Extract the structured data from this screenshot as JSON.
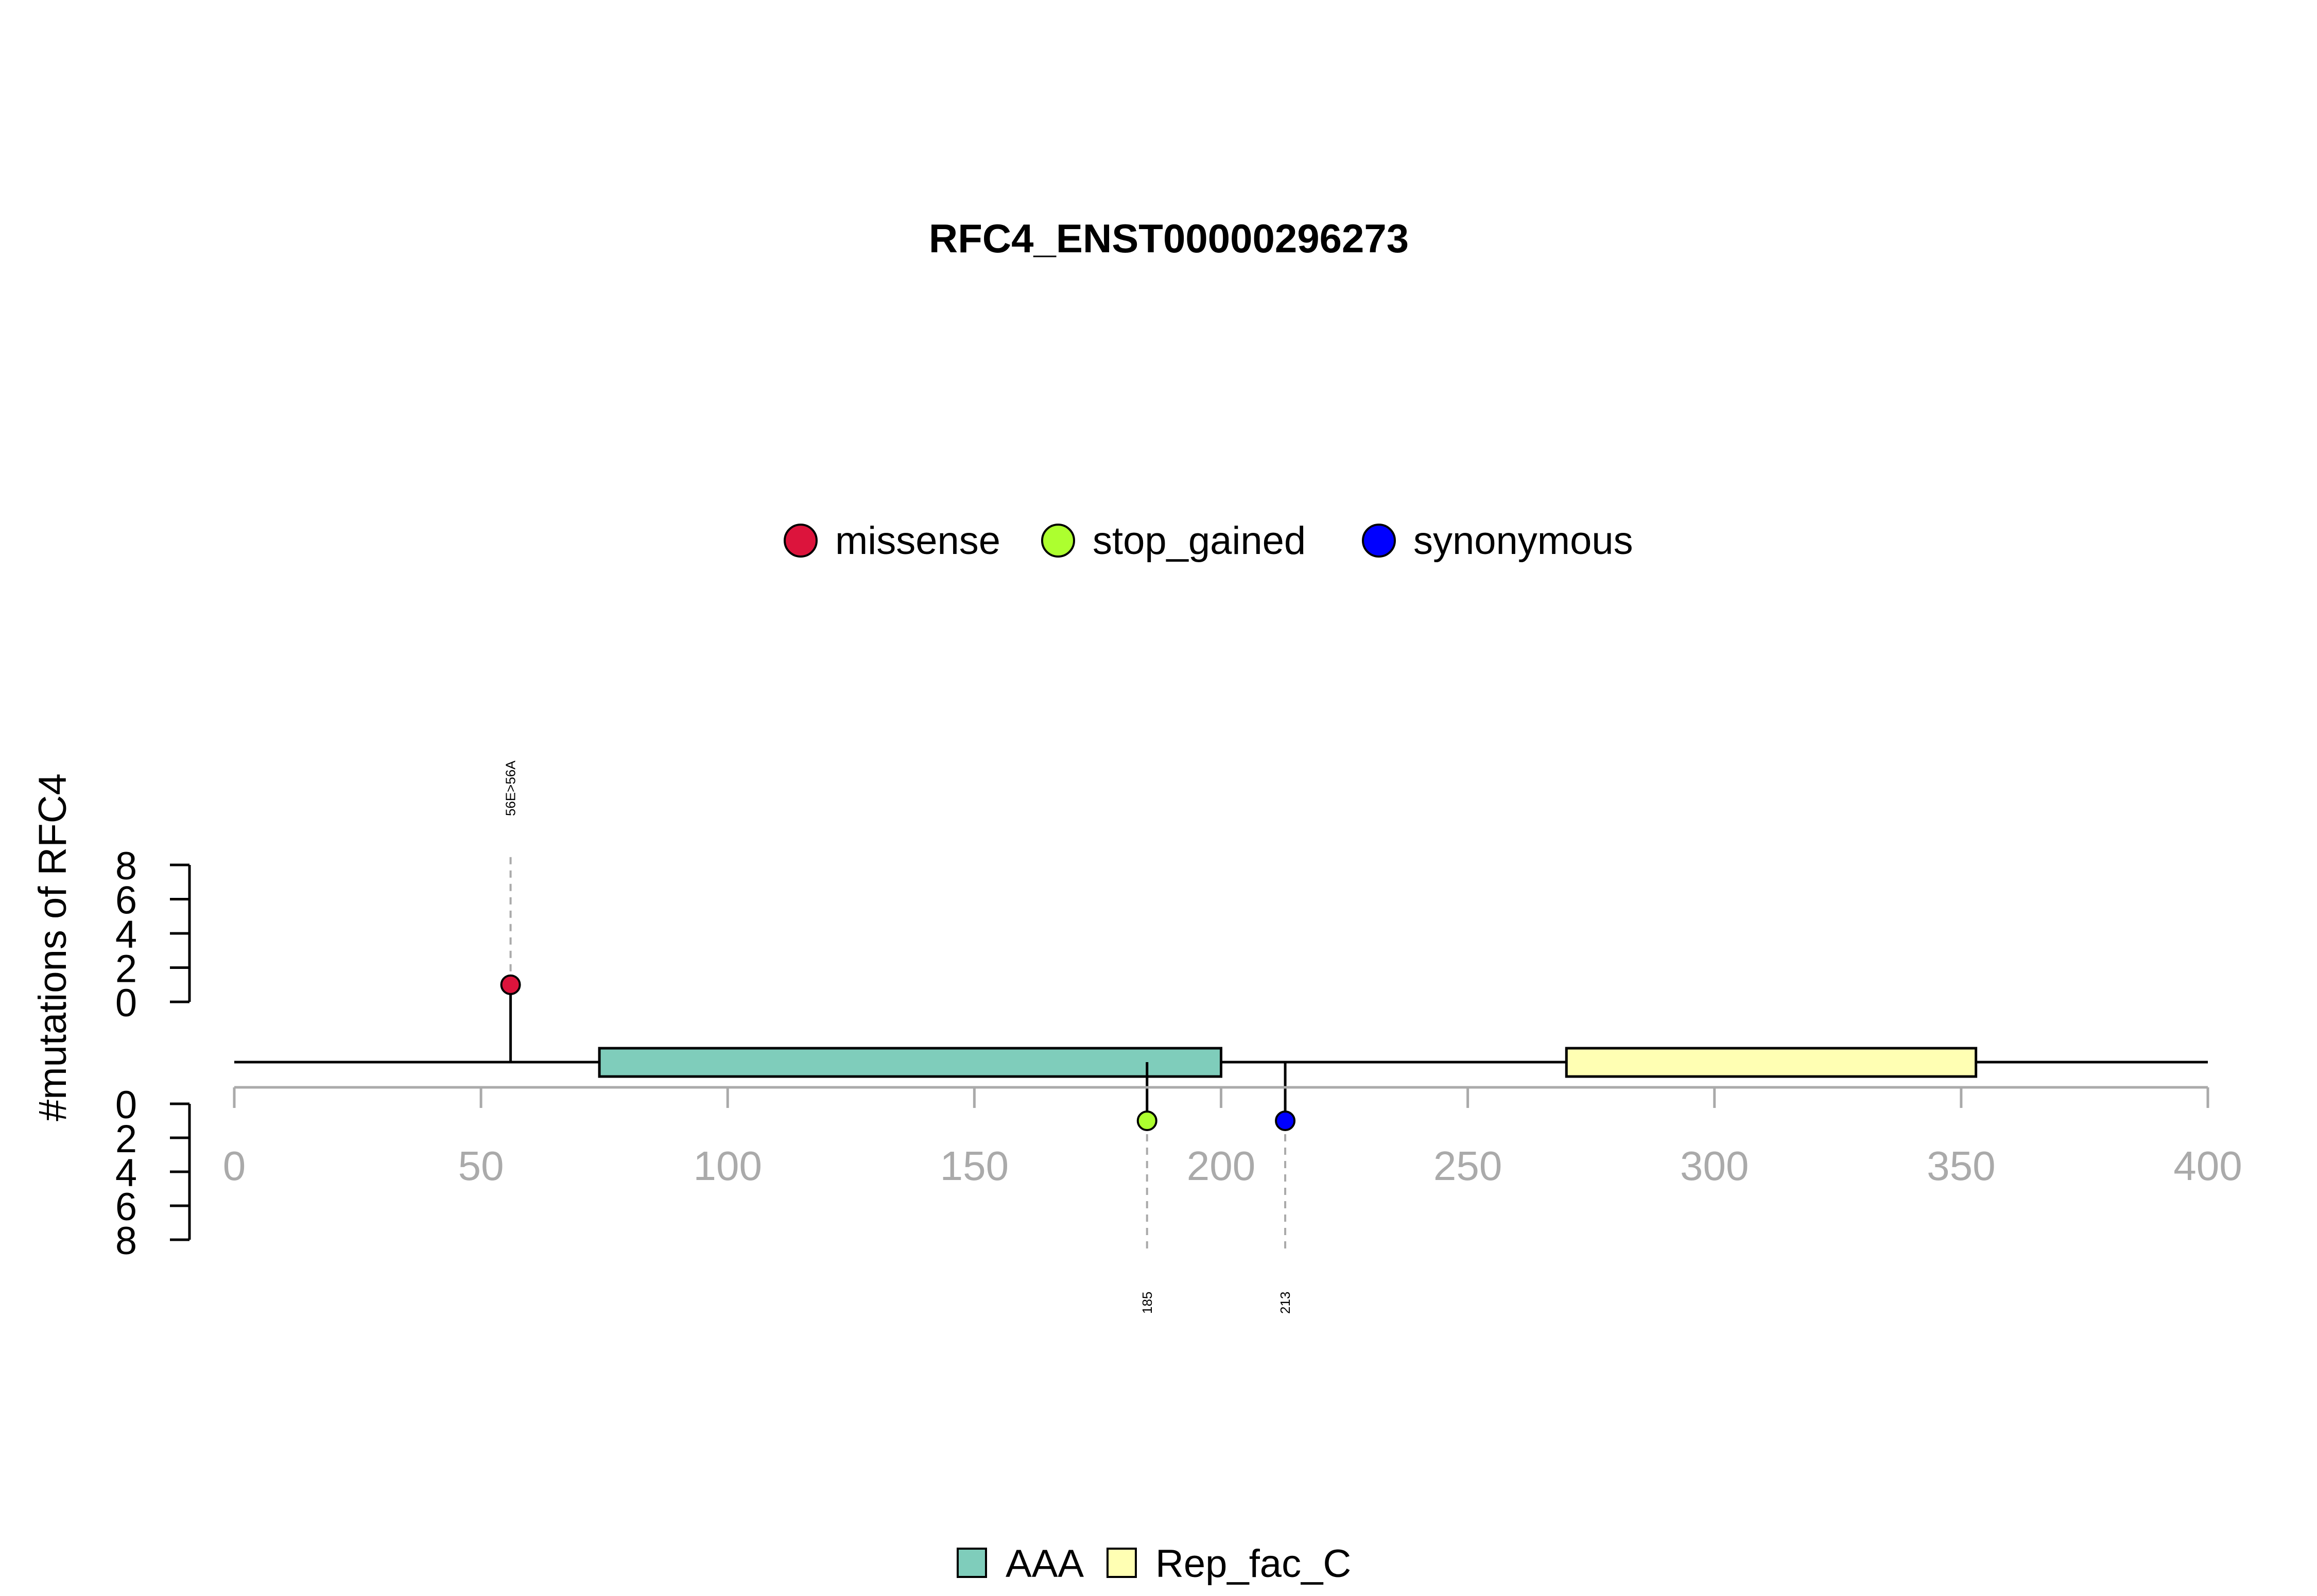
{
  "chart_data": {
    "type": "lollipop",
    "title": "RFC4_ENST00000296273",
    "ylabel": "#mutations of RFC4",
    "xlim": [
      0,
      400
    ],
    "x_ticks": [
      0,
      50,
      100,
      150,
      200,
      250,
      300,
      350,
      400
    ],
    "y_ticks_top": [
      0,
      2,
      4,
      6,
      8
    ],
    "y_ticks_bottom": [
      0,
      2,
      4,
      6,
      8
    ],
    "grid": false,
    "legend_variants": {
      "position": "top-center",
      "entries": [
        {
          "label": "missense",
          "color": "#DC143C"
        },
        {
          "label": "stop_gained",
          "color": "#ADFF2F"
        },
        {
          "label": "synonymous",
          "color": "#0000FF"
        }
      ]
    },
    "legend_domains": {
      "position": "bottom-center",
      "entries": [
        {
          "label": "AAA",
          "color": "#7FCDBB"
        },
        {
          "label": "Rep_fac_C",
          "color": "#FFFFB3"
        }
      ]
    },
    "domains": [
      {
        "name": "AAA",
        "start": 74,
        "end": 200,
        "color": "#7FCDBB"
      },
      {
        "name": "Rep_fac_C",
        "start": 270,
        "end": 353,
        "color": "#FFFFB3"
      }
    ],
    "mutations_top": [
      {
        "position": 56,
        "count": 1,
        "type": "missense",
        "color": "#DC143C",
        "label": "56E>56A"
      }
    ],
    "mutations_bottom": [
      {
        "position": 185,
        "count": 1,
        "type": "stop_gained",
        "color": "#ADFF2F",
        "label": "185"
      },
      {
        "position": 213,
        "count": 1,
        "type": "synonymous",
        "color": "#0000FF",
        "label": "213"
      }
    ]
  }
}
